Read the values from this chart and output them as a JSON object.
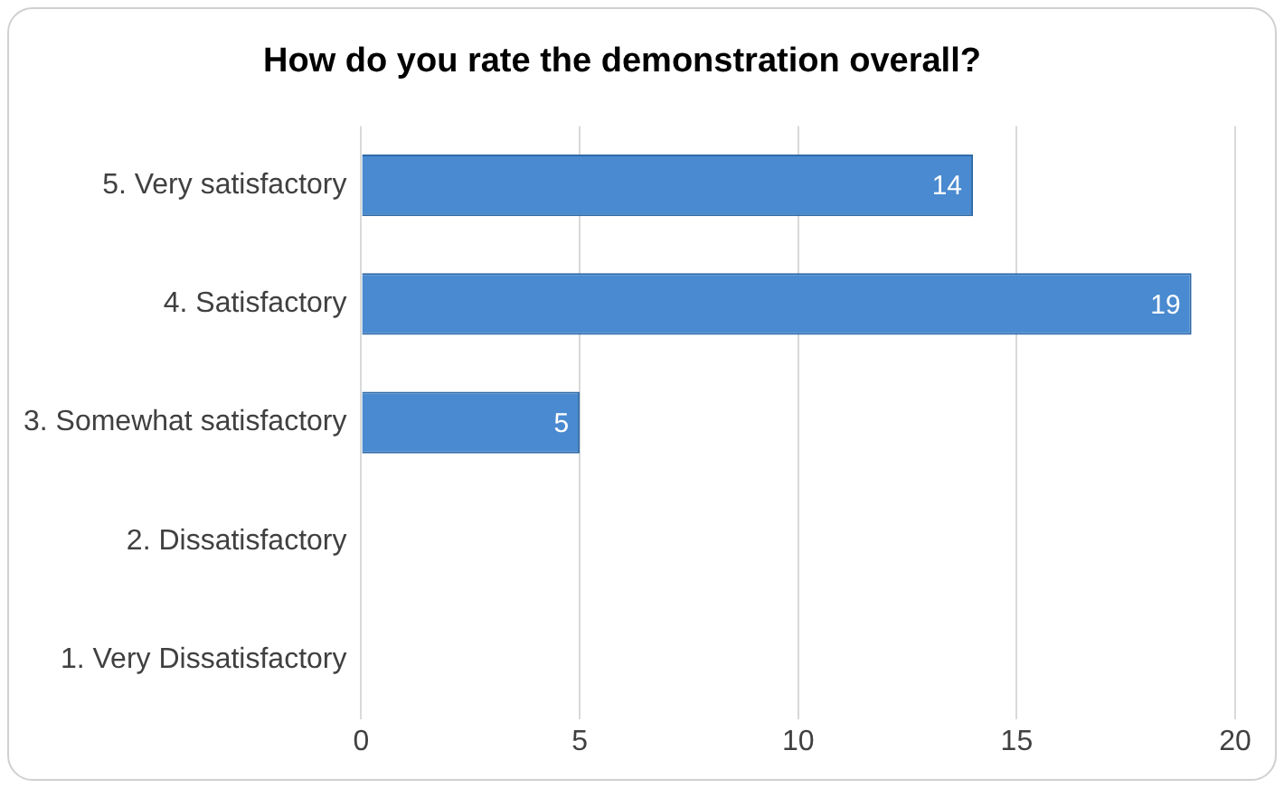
{
  "chart_data": {
    "type": "bar",
    "orientation": "horizontal",
    "title": "How do you rate the demonstration overall?",
    "categories": [
      "5. Very satisfactory",
      "4. Satisfactory",
      "3. Somewhat satisfactory",
      "2. Dissatisfactory",
      "1. Very Dissatisfactory"
    ],
    "values": [
      14,
      19,
      5,
      0,
      0
    ],
    "value_labels": [
      "14",
      "19",
      "5",
      null,
      null
    ],
    "color": "#4a8ad0",
    "xlim": [
      0,
      20
    ],
    "xticks": [
      0,
      5,
      10,
      15,
      20
    ],
    "grid": "x",
    "legend": false
  }
}
